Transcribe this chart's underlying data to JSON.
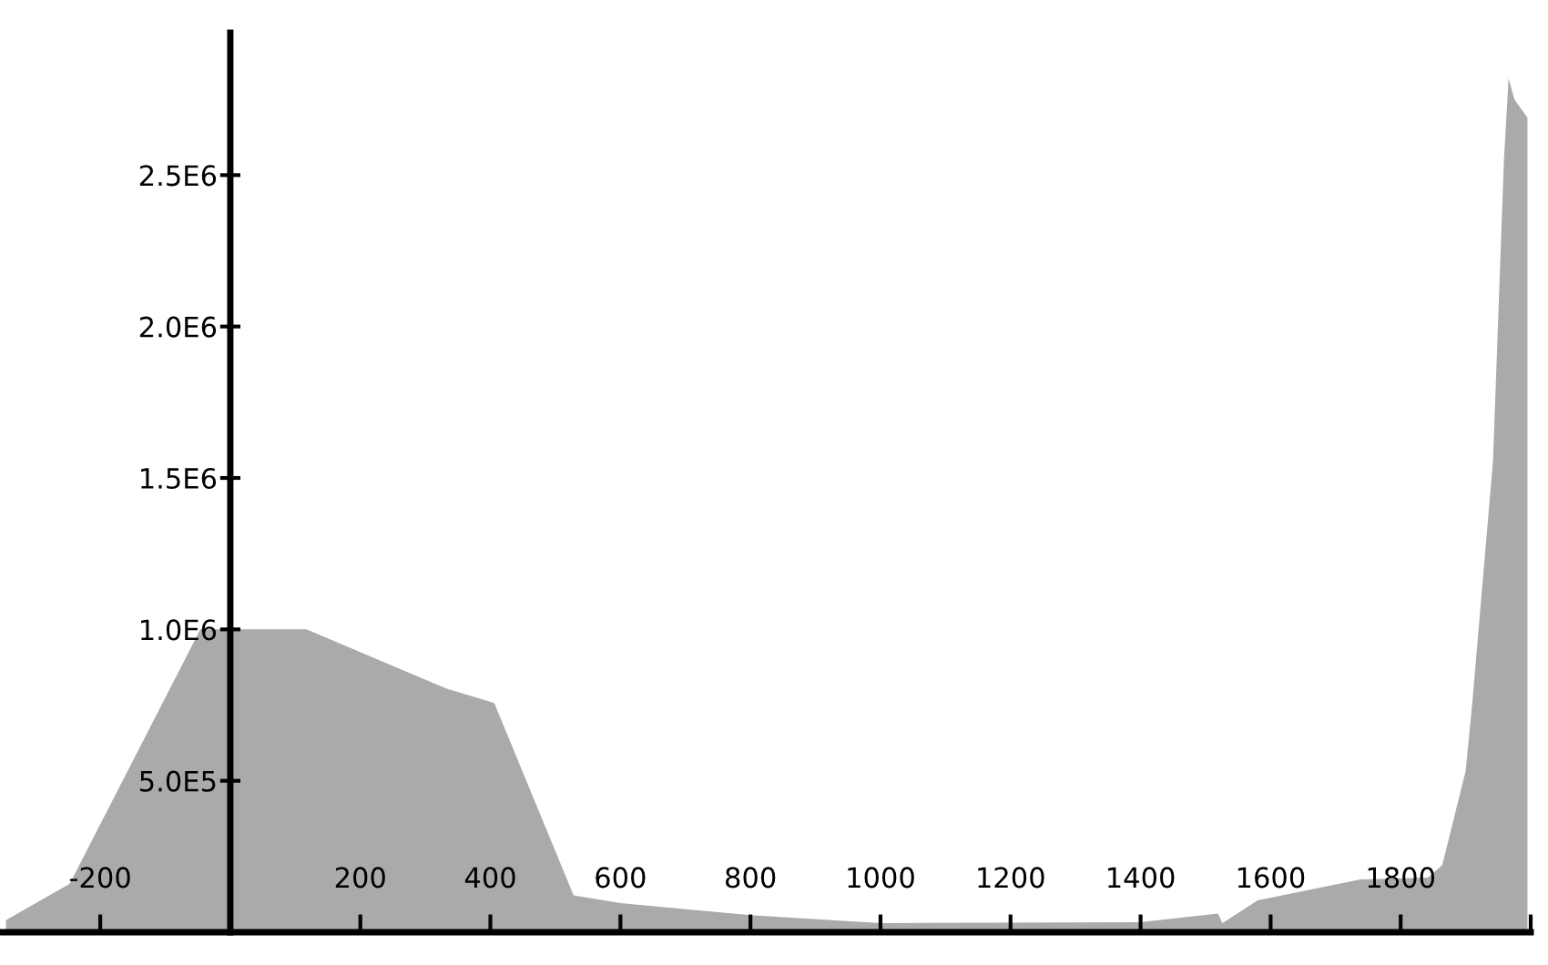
{
  "chart_data": {
    "type": "area",
    "x": [
      -345,
      -247,
      -46,
      117,
      332,
      406,
      528,
      600,
      800,
      1000,
      1400,
      1519,
      1526,
      1580,
      1738,
      1842,
      1864,
      1900,
      1910,
      1942,
      1959,
      1966,
      1975,
      1995
    ],
    "series": [
      {
        "color": "#aaaaaa",
        "values": [
          40000,
          160000,
          1000000,
          1000000,
          805000,
          757000,
          122000,
          96000,
          56000,
          30000,
          33000,
          62000,
          30000,
          105000,
          174000,
          180000,
          222000,
          533000,
          753000,
          1556000,
          2556000,
          2820000,
          2750000,
          2690000
        ]
      }
    ],
    "xlim": [
      -350,
      2000
    ],
    "ylim": [
      0,
      2970000
    ],
    "xticks": [
      -200,
      200,
      400,
      600,
      800,
      1000,
      1200,
      1400,
      1600,
      1800,
      {
        "value": 2000,
        "label": null
      }
    ],
    "yticks": [
      {
        "value": 500000,
        "label": "5.0E5"
      },
      {
        "value": 1000000,
        "label": "1.0E6"
      },
      {
        "value": 1500000,
        "label": "1.5E6"
      },
      {
        "value": 2000000,
        "label": "2.0E6"
      },
      {
        "value": 2500000,
        "label": "2.5E6"
      }
    ],
    "grid": false,
    "legend": false
  }
}
